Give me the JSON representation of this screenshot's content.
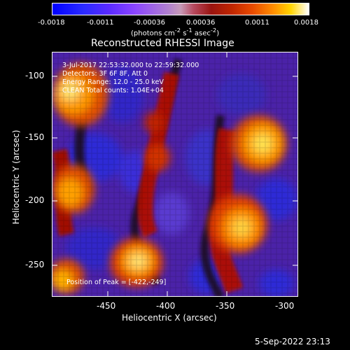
{
  "colorbar": {
    "ticks": [
      "-0.0018",
      "-0.0011",
      "-0.00036",
      "0.00036",
      "0.0011",
      "0.0018"
    ],
    "unit_html": "(photons cm<sup>-2</sup> s<sup>-1</sup> asec<sup>-2</sup>)"
  },
  "title": "Reconstructed RHESSI Image",
  "annotations": {
    "time": "3-Jul-2017 22:53:32.000 to 22:59:32.000",
    "detectors": "Detectors: 3F 6F 8F, Att 0",
    "energy": "Energy Range: 12.0 - 25.0 keV",
    "counts": "CLEAN    Total counts: 1.04E+04",
    "peak": "Position of Peak = [-422,-249]"
  },
  "axes": {
    "xlabel": "Heliocentric X (arcsec)",
    "ylabel": "Heliocentric Y (arcsec)",
    "xticks": [
      "-450",
      "-400",
      "-350",
      "-300"
    ],
    "yticks": [
      "-100",
      "-150",
      "-200",
      "-250"
    ]
  },
  "timestamp": "5-Sep-2022 23:13",
  "colors": {
    "background": "#000000",
    "frame": "#ffffff"
  }
}
